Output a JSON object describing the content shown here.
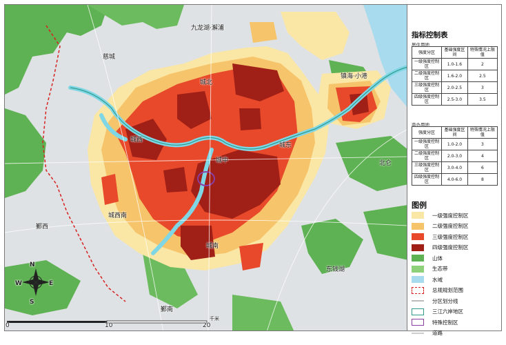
{
  "place_labels": [
    {
      "text": "九龙湖·澥浦",
      "kind": "town"
    },
    {
      "text": "慈城",
      "kind": "town"
    },
    {
      "text": "城北",
      "kind": "district"
    },
    {
      "text": "镇海·小港",
      "kind": "district"
    },
    {
      "text": "城西",
      "kind": "district"
    },
    {
      "text": "城东",
      "kind": "district"
    },
    {
      "text": "城中",
      "kind": "district"
    },
    {
      "text": "北仑",
      "kind": "district"
    },
    {
      "text": "城西南",
      "kind": "district"
    },
    {
      "text": "城南",
      "kind": "district"
    },
    {
      "text": "鄞西",
      "kind": "district"
    },
    {
      "text": "东钱湖",
      "kind": "district"
    },
    {
      "text": "鄞南",
      "kind": "district"
    }
  ],
  "compass": {
    "n": "N",
    "s": "S",
    "e": "E",
    "w": "W"
  },
  "scale": {
    "ticks": [
      "0",
      "10",
      "20"
    ],
    "unit": "千米"
  },
  "index_table": {
    "title": "指标控制表",
    "residential": {
      "label": "居住用地",
      "headers": [
        "强度分区",
        "基础强度区间",
        "特殊情况上限值"
      ],
      "rows": [
        [
          "一级强度控制区",
          "1.0-1.6",
          "2"
        ],
        [
          "二级强度控制区",
          "1.6-2.0",
          "2.5"
        ],
        [
          "三级强度控制区",
          "2.0-2.5",
          "3"
        ],
        [
          "四级强度控制区",
          "2.5-3.0",
          "3.5"
        ]
      ]
    },
    "commercial": {
      "label": "商办用地",
      "headers": [
        "强度分区",
        "基础强度区间",
        "特殊情况上限值"
      ],
      "rows": [
        [
          "一级强度控制区",
          "1.0-2.0",
          "3"
        ],
        [
          "二级强度控制区",
          "2.0-3.0",
          "4"
        ],
        [
          "三级强度控制区",
          "3.0-4.0",
          "6"
        ],
        [
          "四级强度控制区",
          "4.0-6.0",
          "8"
        ]
      ]
    }
  },
  "legend": {
    "title": "图例",
    "items": [
      {
        "label": "一级强度控制区",
        "color": "#fbe7a5",
        "style": "fill"
      },
      {
        "label": "二级强度控制区",
        "color": "#f6c46a",
        "style": "fill"
      },
      {
        "label": "三级强度控制区",
        "color": "#e7492a",
        "style": "fill"
      },
      {
        "label": "四级强度控制区",
        "color": "#a02017",
        "style": "fill"
      },
      {
        "label": "山体",
        "color": "#5fb253",
        "style": "fill"
      },
      {
        "label": "生态带",
        "color": "#8fd17a",
        "style": "fill"
      },
      {
        "label": "水域",
        "color": "#a9dbee",
        "style": "fill"
      },
      {
        "label": "总规规划范围",
        "color": "#d62020",
        "style": "dashed"
      },
      {
        "label": "分区划分线",
        "color": "#bbbbbb",
        "style": "line"
      },
      {
        "label": "三江六岸地区",
        "color": "#2e9a8c",
        "style": "outline"
      },
      {
        "label": "特殊控制区",
        "color": "#8a3ea3",
        "style": "outline"
      },
      {
        "label": "道路",
        "color": "#cccccc",
        "style": "thin"
      }
    ]
  }
}
